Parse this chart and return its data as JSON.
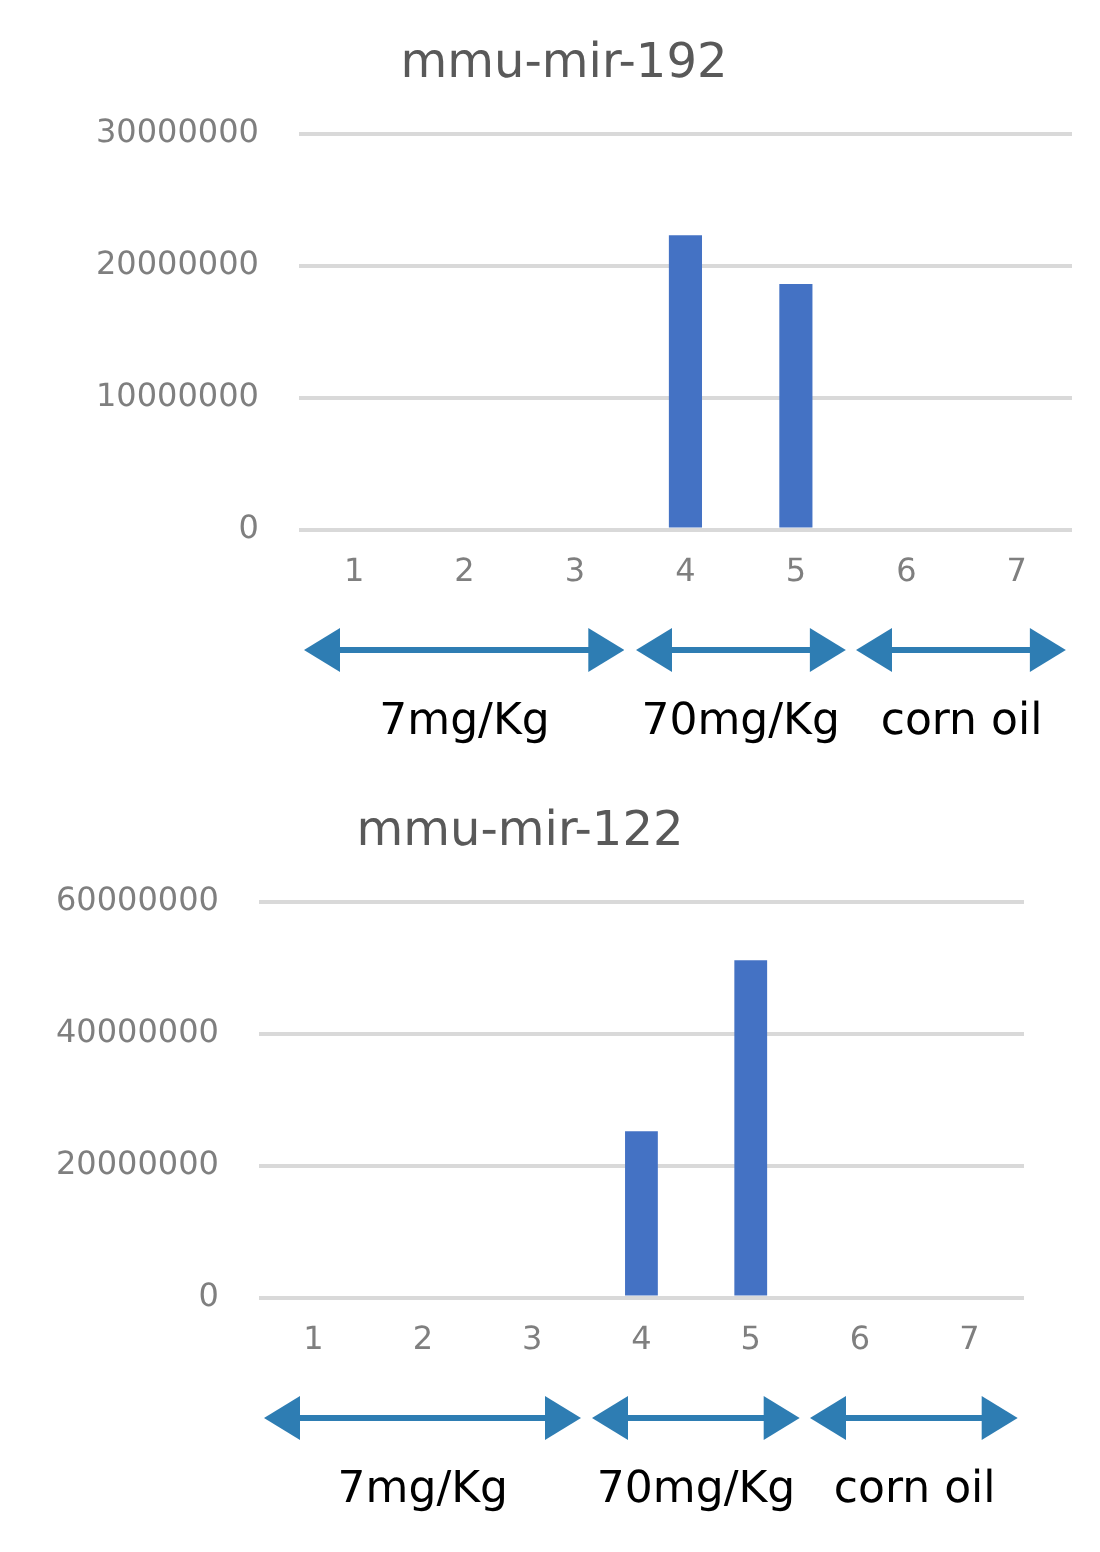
{
  "chart_data": [
    {
      "type": "bar",
      "title": "mmu-mir-192",
      "categories": [
        "1",
        "2",
        "3",
        "4",
        "5",
        "6",
        "7"
      ],
      "values": [
        0,
        0,
        0,
        22300000,
        18600000,
        0,
        0
      ],
      "color": "#4472c4",
      "ylim": [
        0,
        30000000
      ],
      "yticks": [
        0,
        10000000,
        20000000,
        30000000
      ],
      "grid": "y",
      "annotations": [
        "7mg/Kg",
        "70mg/Kg",
        "corn oil"
      ]
    },
    {
      "type": "bar",
      "title": "mmu-mir-122",
      "categories": [
        "1",
        "2",
        "3",
        "4",
        "5",
        "6",
        "7"
      ],
      "values": [
        0,
        0,
        0,
        25200000,
        51100000,
        0,
        0
      ],
      "color": "#4472c4",
      "ylim": [
        0,
        60000000
      ],
      "yticks": [
        0,
        20000000,
        40000000,
        60000000
      ],
      "grid": "y",
      "annotations": [
        "7mg/Kg",
        "70mg/Kg",
        "corn oil"
      ]
    }
  ]
}
